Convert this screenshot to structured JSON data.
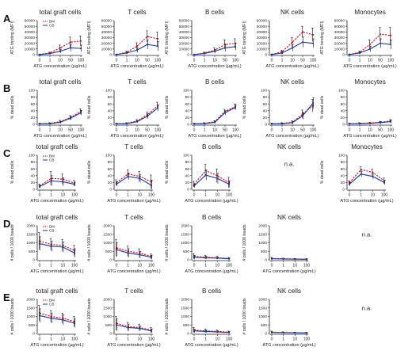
{
  "figure": {
    "colors": {
      "bm": "#c8102e",
      "cb": "#1f3a93",
      "axis": "#222222"
    },
    "legend": {
      "bm": "BM",
      "cb": "CB"
    },
    "na_label": "n.a."
  },
  "chart_data": [
    {
      "row": "A",
      "type": "line",
      "panel_label": "A",
      "ylabel": "ATG binding (MFI)",
      "xlabel": "ATG concentration (µg/mL)",
      "x_ticks": [
        "0",
        "1",
        "10",
        "50",
        "100"
      ],
      "y_ticks": [
        "0",
        "10000",
        "20000",
        "30000",
        "40000",
        "50000",
        "60000"
      ],
      "ylim": [
        0,
        60000
      ],
      "panels": [
        {
          "title": "total graft cells",
          "legend": true,
          "series": [
            {
              "name": "BM",
              "values": [
                200,
                3000,
                12000,
                22000,
                24000
              ],
              "errors": [
                100,
                1500,
                5000,
                9000,
                9000
              ]
            },
            {
              "name": "CB",
              "values": [
                100,
                2000,
                6000,
                12000,
                11000
              ],
              "errors": [
                100,
                1000,
                3000,
                6000,
                6000
              ]
            }
          ]
        },
        {
          "title": "T cells",
          "legend": false,
          "series": [
            {
              "name": "BM",
              "values": [
                300,
                4000,
                15000,
                32000,
                28000
              ],
              "errors": [
                200,
                2000,
                6000,
                10000,
                12000
              ]
            },
            {
              "name": "CB",
              "values": [
                200,
                3000,
                8000,
                18000,
                15000
              ],
              "errors": [
                100,
                1500,
                4000,
                8000,
                8000
              ]
            }
          ]
        },
        {
          "title": "B cells",
          "legend": false,
          "series": [
            {
              "name": "BM",
              "values": [
                200,
                3000,
                8000,
                18000,
                20000
              ],
              "errors": [
                100,
                1500,
                4000,
                8000,
                8000
              ]
            },
            {
              "name": "CB",
              "values": [
                100,
                2000,
                6000,
                12000,
                14000
              ],
              "errors": [
                100,
                1000,
                3000,
                6000,
                6000
              ]
            }
          ]
        },
        {
          "title": "NK cells",
          "legend": false,
          "series": [
            {
              "name": "BM",
              "values": [
                500,
                5000,
                22000,
                40000,
                35000
              ],
              "errors": [
                300,
                3000,
                8000,
                10000,
                12000
              ]
            },
            {
              "name": "CB",
              "values": [
                200,
                3000,
                12000,
                22000,
                20000
              ],
              "errors": [
                100,
                2000,
                6000,
                9000,
                8000
              ]
            }
          ]
        },
        {
          "title": "Monocytes",
          "legend": false,
          "series": [
            {
              "name": "BM",
              "values": [
                300,
                4000,
                18000,
                36000,
                34000
              ],
              "errors": [
                200,
                2000,
                8000,
                12000,
                14000
              ]
            },
            {
              "name": "CB",
              "values": [
                200,
                3000,
                10000,
                20000,
                18000
              ],
              "errors": [
                100,
                1500,
                5000,
                8000,
                8000
              ]
            }
          ]
        }
      ]
    },
    {
      "row": "B",
      "type": "line",
      "panel_label": "B",
      "ylabel": "% dead cells",
      "xlabel": "ATG concentration (µg/mL)",
      "x_ticks": [
        "0",
        "1",
        "10",
        "50",
        "100"
      ],
      "y_ticks": [
        "0",
        "20",
        "40",
        "60",
        "80",
        "100"
      ],
      "ylim": [
        0,
        100
      ],
      "panels": [
        {
          "title": "total graft cells",
          "legend": false,
          "series": [
            {
              "name": "BM",
              "values": [
                2,
                3,
                8,
                20,
                38
              ],
              "errors": [
                1,
                2,
                4,
                6,
                8
              ]
            },
            {
              "name": "CB",
              "values": [
                2,
                2,
                6,
                18,
                34
              ],
              "errors": [
                1,
                1,
                3,
                5,
                7
              ]
            }
          ]
        },
        {
          "title": "T cells",
          "legend": false,
          "series": [
            {
              "name": "BM",
              "values": [
                2,
                3,
                10,
                28,
                55
              ],
              "errors": [
                1,
                2,
                4,
                8,
                10
              ]
            },
            {
              "name": "CB",
              "values": [
                2,
                2,
                8,
                24,
                48
              ],
              "errors": [
                1,
                1,
                3,
                7,
                9
              ]
            }
          ]
        },
        {
          "title": "B cells",
          "legend": false,
          "series": [
            {
              "name": "BM",
              "values": [
                2,
                3,
                8,
                38,
                52
              ],
              "errors": [
                1,
                2,
                3,
                6,
                8
              ]
            },
            {
              "name": "CB",
              "values": [
                2,
                2,
                6,
                34,
                50
              ],
              "errors": [
                1,
                1,
                3,
                6,
                7
              ]
            }
          ]
        },
        {
          "title": "NK cells",
          "legend": false,
          "series": [
            {
              "name": "BM",
              "values": [
                2,
                3,
                6,
                30,
                55
              ],
              "errors": [
                2,
                2,
                4,
                12,
                18
              ]
            },
            {
              "name": "CB",
              "values": [
                2,
                2,
                5,
                25,
                62
              ],
              "errors": [
                1,
                2,
                4,
                10,
                16
              ]
            }
          ]
        },
        {
          "title": "Monocytes",
          "legend": false,
          "series": [
            {
              "name": "BM",
              "values": [
                2,
                3,
                4,
                6,
                10
              ],
              "errors": [
                1,
                2,
                2,
                3,
                4
              ]
            },
            {
              "name": "CB",
              "values": [
                2,
                2,
                3,
                5,
                8
              ],
              "errors": [
                1,
                1,
                2,
                3,
                4
              ]
            }
          ]
        }
      ]
    },
    {
      "row": "C",
      "type": "line",
      "panel_label": "C",
      "ylabel": "% dead cells",
      "xlabel": "ATG concentration (µg/mL)",
      "x_ticks": [
        "0",
        "1",
        "10",
        "100"
      ],
      "y_ticks": [
        "0",
        "20",
        "40",
        "60",
        "80",
        "100"
      ],
      "ylim": [
        0,
        100
      ],
      "panels": [
        {
          "title": "total graft cells",
          "legend": true,
          "series": [
            {
              "name": "BM",
              "values": [
                10,
                32,
                30,
                18
              ],
              "errors": [
                5,
                20,
                15,
                8
              ]
            },
            {
              "name": "CB",
              "values": [
                8,
                25,
                22,
                15
              ],
              "errors": [
                4,
                15,
                12,
                6
              ]
            }
          ]
        },
        {
          "title": "T cells",
          "legend": false,
          "series": [
            {
              "name": "BM",
              "values": [
                20,
                45,
                38,
                22
              ],
              "errors": [
                8,
                12,
                15,
                20
              ]
            },
            {
              "name": "CB",
              "values": [
                15,
                38,
                32,
                12
              ],
              "errors": [
                6,
                10,
                12,
                15
              ]
            }
          ]
        },
        {
          "title": "B cells",
          "legend": false,
          "series": [
            {
              "name": "BM",
              "values": [
                15,
                55,
                40,
                20
              ],
              "errors": [
                8,
                18,
                20,
                15
              ]
            },
            {
              "name": "CB",
              "values": [
                10,
                42,
                32,
                15
              ],
              "errors": [
                5,
                15,
                15,
                10
              ]
            }
          ]
        },
        {
          "title": "NK cells",
          "legend": false,
          "na": true,
          "series": []
        },
        {
          "title": "Monocytes",
          "legend": false,
          "series": [
            {
              "name": "BM",
              "values": [
                20,
                58,
                50,
                25
              ],
              "errors": [
                5,
                8,
                10,
                8
              ]
            },
            {
              "name": "CB",
              "values": [
                15,
                45,
                38,
                20
              ],
              "errors": [
                5,
                8,
                8,
                6
              ]
            }
          ]
        }
      ]
    },
    {
      "row": "D",
      "type": "line",
      "panel_label": "D",
      "ylabel": "# cells / 1000 beads",
      "xlabel": "ATG concentration (µg/mL)",
      "x_ticks": [
        "0",
        "1",
        "10",
        "100"
      ],
      "y_ticks": [
        "0",
        "500",
        "1000",
        "1500",
        "2000"
      ],
      "ylim": [
        0,
        2000
      ],
      "panels": [
        {
          "title": "total graft cells",
          "legend": true,
          "series": [
            {
              "name": "BM",
              "values": [
                1100,
                900,
                850,
                550
              ],
              "errors": [
                500,
                350,
                350,
                300
              ]
            },
            {
              "name": "CB",
              "values": [
                950,
                800,
                750,
                400
              ],
              "errors": [
                400,
                300,
                300,
                250
              ]
            }
          ]
        },
        {
          "title": "T cells",
          "legend": false,
          "series": [
            {
              "name": "BM",
              "values": [
                700,
                500,
                400,
                200
              ],
              "errors": [
                500,
                300,
                250,
                150
              ]
            },
            {
              "name": "CB",
              "values": [
                600,
                400,
                300,
                150
              ],
              "errors": [
                400,
                250,
                200,
                120
              ]
            }
          ]
        },
        {
          "title": "B cells",
          "legend": false,
          "series": [
            {
              "name": "BM",
              "values": [
                200,
                150,
                120,
                80
              ],
              "errors": [
                150,
                100,
                80,
                60
              ]
            },
            {
              "name": "CB",
              "values": [
                150,
                120,
                100,
                60
              ],
              "errors": [
                120,
                80,
                60,
                40
              ]
            }
          ]
        },
        {
          "title": "NK cells",
          "legend": false,
          "series": [
            {
              "name": "BM",
              "values": [
                80,
                60,
                50,
                40
              ],
              "errors": [
                60,
                40,
                30,
                30
              ]
            },
            {
              "name": "CB",
              "values": [
                60,
                50,
                40,
                30
              ],
              "errors": [
                40,
                30,
                25,
                20
              ]
            }
          ]
        },
        {
          "title": "",
          "legend": false,
          "na": true,
          "series": []
        }
      ]
    },
    {
      "row": "E",
      "type": "line",
      "panel_label": "E",
      "ylabel": "# cells / 1000 beads",
      "xlabel": "ATG concentration (µg/mL)",
      "x_ticks": [
        "0",
        "1",
        "10",
        "100"
      ],
      "y_ticks": [
        "0",
        "500",
        "1000",
        "1500",
        "2000"
      ],
      "ylim": [
        0,
        2000
      ],
      "panels": [
        {
          "title": "total graft cells",
          "legend": true,
          "series": [
            {
              "name": "BM",
              "values": [
                1200,
                1000,
                900,
                700
              ],
              "errors": [
                450,
                350,
                300,
                300
              ]
            },
            {
              "name": "CB",
              "values": [
                1050,
                900,
                800,
                600
              ],
              "errors": [
                400,
                300,
                300,
                250
              ]
            }
          ]
        },
        {
          "title": "T cells",
          "legend": false,
          "series": [
            {
              "name": "BM",
              "values": [
                600,
                400,
                350,
                200
              ],
              "errors": [
                400,
                250,
                200,
                150
              ]
            },
            {
              "name": "CB",
              "values": [
                500,
                350,
                300,
                150
              ],
              "errors": [
                350,
                200,
                150,
                100
              ]
            }
          ]
        },
        {
          "title": "B cells",
          "legend": false,
          "series": [
            {
              "name": "BM",
              "values": [
                200,
                150,
                120,
                80
              ],
              "errors": [
                150,
                100,
                80,
                60
              ]
            },
            {
              "name": "CB",
              "values": [
                150,
                120,
                90,
                60
              ],
              "errors": [
                100,
                80,
                60,
                40
              ]
            }
          ]
        },
        {
          "title": "NK cells",
          "legend": false,
          "series": [
            {
              "name": "BM",
              "values": [
                80,
                60,
                50,
                40
              ],
              "errors": [
                60,
                40,
                30,
                30
              ]
            },
            {
              "name": "CB",
              "values": [
                60,
                50,
                40,
                30
              ],
              "errors": [
                40,
                30,
                25,
                20
              ]
            }
          ]
        },
        {
          "title": "",
          "legend": false,
          "na": true,
          "series": []
        }
      ]
    }
  ]
}
